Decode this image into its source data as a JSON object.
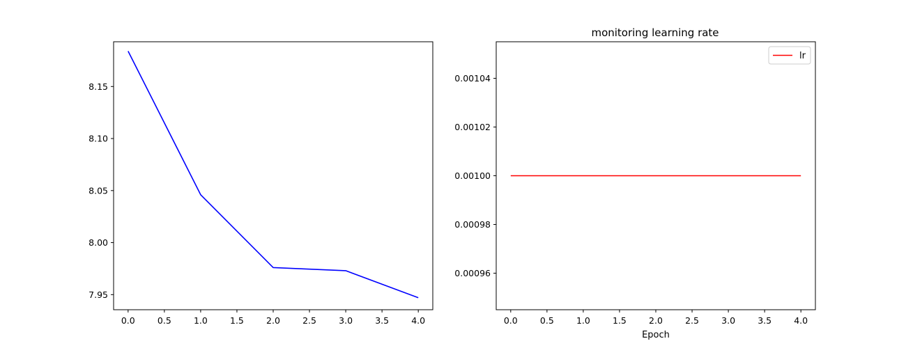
{
  "chart_data": [
    {
      "type": "line",
      "title": "",
      "xlabel": "",
      "ylabel": "",
      "xlim": [
        -0.2,
        4.2
      ],
      "ylim": [
        7.9355,
        8.193
      ],
      "xticks": [
        0.0,
        0.5,
        1.0,
        1.5,
        2.0,
        2.5,
        3.0,
        3.5,
        4.0
      ],
      "xtick_labels": [
        "0.0",
        "0.5",
        "1.0",
        "1.5",
        "2.0",
        "2.5",
        "3.0",
        "3.5",
        "4.0"
      ],
      "yticks": [
        7.95,
        8.0,
        8.05,
        8.1,
        8.15
      ],
      "ytick_labels": [
        "7.95",
        "8.00",
        "8.05",
        "8.10",
        "8.15"
      ],
      "grid": false,
      "series": [
        {
          "color": "#0000ff",
          "x": [
            0,
            1,
            2,
            3,
            4
          ],
          "y": [
            8.184,
            8.046,
            7.976,
            7.973,
            7.947
          ]
        }
      ]
    },
    {
      "type": "line",
      "title": "monitoring learning rate",
      "xlabel": "Epoch",
      "ylabel": "",
      "xlim": [
        -0.2,
        4.2
      ],
      "ylim": [
        0.000945,
        0.001055
      ],
      "xticks": [
        0.0,
        0.5,
        1.0,
        1.5,
        2.0,
        2.5,
        3.0,
        3.5,
        4.0
      ],
      "xtick_labels": [
        "0.0",
        "0.5",
        "1.0",
        "1.5",
        "2.0",
        "2.5",
        "3.0",
        "3.5",
        "4.0"
      ],
      "yticks": [
        0.00096,
        0.00098,
        0.001,
        0.00102,
        0.00104
      ],
      "ytick_labels": [
        "0.00096",
        "0.00098",
        "0.00100",
        "0.00102",
        "0.00104"
      ],
      "grid": false,
      "legend": {
        "placement": "top-right",
        "entries": [
          "lr"
        ]
      },
      "series": [
        {
          "name": "lr",
          "color": "#ff0000",
          "x": [
            0,
            1,
            2,
            3,
            4
          ],
          "y": [
            0.001,
            0.001,
            0.001,
            0.001,
            0.001
          ]
        }
      ]
    }
  ]
}
